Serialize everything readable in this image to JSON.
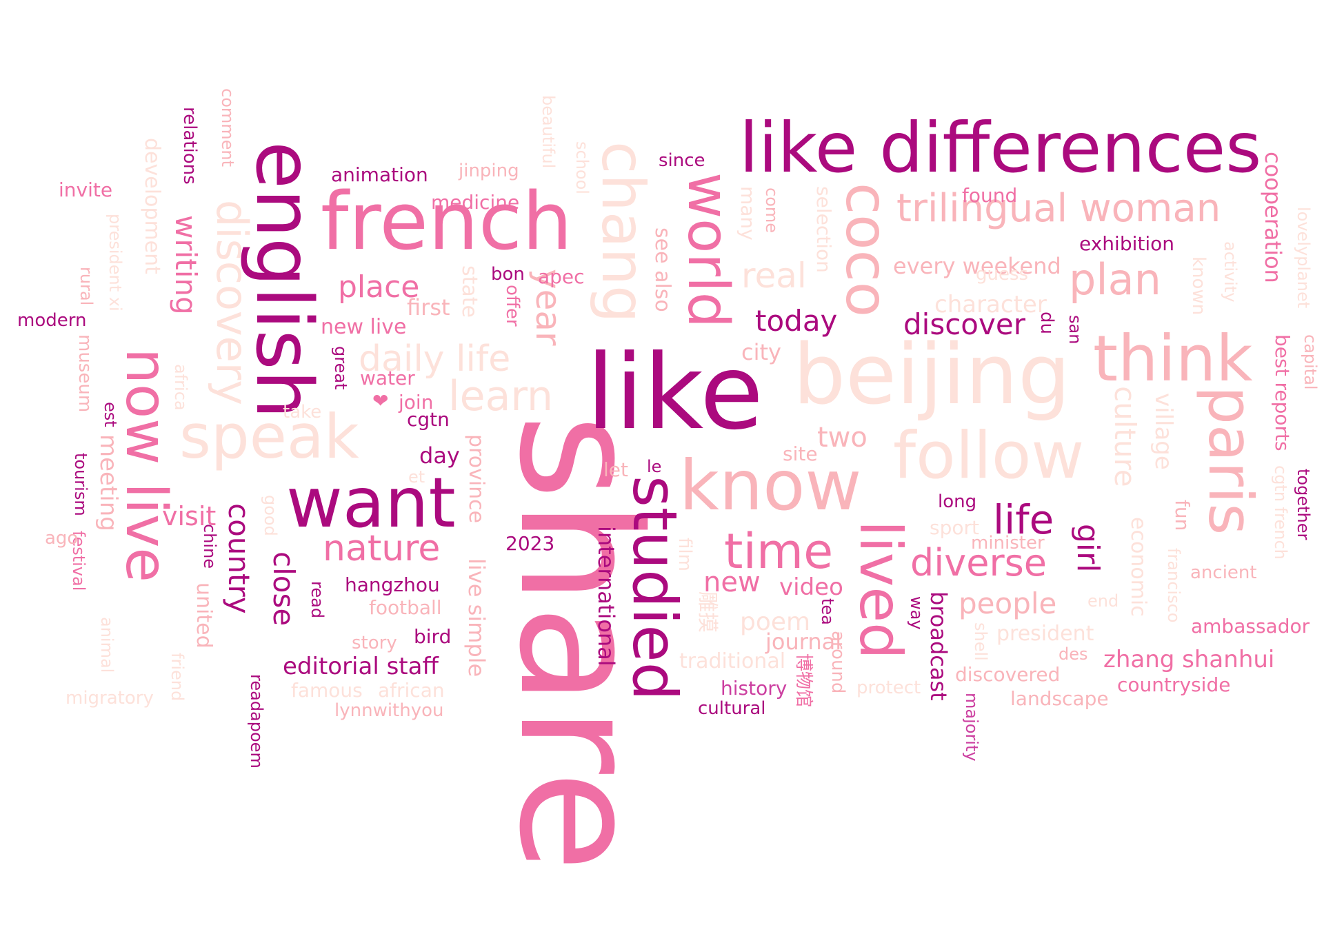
{
  "colors": {
    "deep": "#ab0a7e",
    "magenta": "#cc3fa0",
    "pink": "#f06fa5",
    "light_pink": "#f9b4ba",
    "pale": "#fde1da"
  },
  "words": [
    {
      "text": "share",
      "color": "pink"
    },
    {
      "text": "like",
      "color": "deep"
    },
    {
      "text": "beijing",
      "color": "pale"
    },
    {
      "text": "know",
      "color": "light_pink"
    },
    {
      "text": "like differences",
      "color": "deep"
    },
    {
      "text": "french",
      "color": "pink"
    },
    {
      "text": "english",
      "color": "deep"
    },
    {
      "text": "want",
      "color": "deep"
    },
    {
      "text": "studied",
      "color": "deep"
    },
    {
      "text": "now live",
      "color": "pink"
    },
    {
      "text": "follow",
      "color": "pale"
    },
    {
      "text": "think",
      "color": "light_pink"
    },
    {
      "text": "chang",
      "color": "pale"
    },
    {
      "text": "speak",
      "color": "pale"
    },
    {
      "text": "world",
      "color": "pink"
    },
    {
      "text": "coco",
      "color": "light_pink"
    },
    {
      "text": "paris",
      "color": "light_pink"
    },
    {
      "text": "lived",
      "color": "pink"
    },
    {
      "text": "trilingual woman",
      "color": "light_pink"
    },
    {
      "text": "time",
      "color": "pink"
    },
    {
      "text": "discovery",
      "color": "pale"
    },
    {
      "text": "learn",
      "color": "pale"
    },
    {
      "text": "plan",
      "color": "light_pink"
    },
    {
      "text": "diverse",
      "color": "pink"
    },
    {
      "text": "nature",
      "color": "pink"
    },
    {
      "text": "daily life",
      "color": "pale"
    },
    {
      "text": "year",
      "color": "light_pink"
    },
    {
      "text": "life",
      "color": "deep"
    },
    {
      "text": "writing",
      "color": "pink"
    },
    {
      "text": "culture",
      "color": "pale"
    },
    {
      "text": "real",
      "color": "pale"
    },
    {
      "text": "place",
      "color": "pink"
    },
    {
      "text": "today",
      "color": "deep"
    },
    {
      "text": "discover",
      "color": "deep"
    },
    {
      "text": "country",
      "color": "deep"
    },
    {
      "text": "close",
      "color": "deep"
    },
    {
      "text": "girl",
      "color": "deep"
    },
    {
      "text": "people",
      "color": "light_pink"
    },
    {
      "text": "meeting",
      "color": "light_pink"
    },
    {
      "text": "live simple",
      "color": "light_pink"
    },
    {
      "text": "broadcast",
      "color": "deep"
    },
    {
      "text": "new",
      "color": "pink"
    },
    {
      "text": "village",
      "color": "pale"
    },
    {
      "text": "international",
      "color": "deep"
    },
    {
      "text": "every weekend",
      "color": "light_pink"
    },
    {
      "text": "character",
      "color": "pale"
    },
    {
      "text": "two",
      "color": "light_pink"
    },
    {
      "text": "video",
      "color": "pink"
    },
    {
      "text": "cooperation",
      "color": "pink"
    },
    {
      "text": "zhang shanhui",
      "color": "pink"
    },
    {
      "text": "visit",
      "color": "pink"
    },
    {
      "text": "editorial staff",
      "color": "deep"
    },
    {
      "text": "poem",
      "color": "pale"
    },
    {
      "text": "journal",
      "color": "light_pink"
    },
    {
      "text": "province",
      "color": "light_pink"
    },
    {
      "text": "development",
      "color": "pale"
    },
    {
      "text": "hangzhou",
      "color": "deep"
    },
    {
      "text": "animation",
      "color": "deep"
    },
    {
      "text": "medicine",
      "color": "pink"
    },
    {
      "text": "state",
      "color": "pale"
    },
    {
      "text": "see also",
      "color": "light_pink"
    },
    {
      "text": "city",
      "color": "light_pink"
    },
    {
      "text": "economic",
      "color": "pale"
    },
    {
      "text": "president",
      "color": "pale"
    },
    {
      "text": "traditional",
      "color": "pale"
    },
    {
      "text": "united",
      "color": "light_pink"
    },
    {
      "text": "day",
      "color": "deep"
    },
    {
      "text": "discovered",
      "color": "light_pink"
    },
    {
      "text": "found",
      "color": "pink"
    },
    {
      "text": "apec",
      "color": "pink"
    },
    {
      "text": "first",
      "color": "light_pink"
    },
    {
      "text": "new live",
      "color": "pink"
    },
    {
      "text": "exhibition",
      "color": "deep"
    },
    {
      "text": "best reports",
      "color": "pink"
    },
    {
      "text": "fun",
      "color": "light_pink"
    },
    {
      "text": "relations",
      "color": "deep"
    },
    {
      "text": "comment",
      "color": "light_pink"
    },
    {
      "text": "many",
      "color": "pale"
    },
    {
      "text": "selection",
      "color": "pale"
    },
    {
      "text": "jinping",
      "color": "light_pink"
    },
    {
      "text": "museum",
      "color": "light_pink"
    },
    {
      "text": "site",
      "color": "light_pink"
    },
    {
      "text": "president xi",
      "color": "pale"
    },
    {
      "text": "cgtn french",
      "color": "pale"
    },
    {
      "text": "history",
      "color": "magenta"
    },
    {
      "text": "博物馆",
      "color": "pink"
    },
    {
      "text": "雕摸",
      "color": "pale"
    },
    {
      "text": "ambassador",
      "color": "pink"
    },
    {
      "text": "countryside",
      "color": "pink"
    },
    {
      "text": "landscape",
      "color": "light_pink"
    },
    {
      "text": "football",
      "color": "light_pink"
    },
    {
      "text": "cgtn",
      "color": "deep"
    },
    {
      "text": "water",
      "color": "pink"
    },
    {
      "text": "join",
      "color": "pink"
    },
    {
      "text": "❤",
      "color": "pink"
    },
    {
      "text": "bird",
      "color": "deep"
    },
    {
      "text": "story",
      "color": "light_pink"
    },
    {
      "text": "famous",
      "color": "pale"
    },
    {
      "text": "african",
      "color": "pale"
    },
    {
      "text": "lynnwithyou",
      "color": "light_pink"
    },
    {
      "text": "readapoem",
      "color": "deep"
    },
    {
      "text": "read",
      "color": "deep"
    },
    {
      "text": "great",
      "color": "deep"
    },
    {
      "text": "take",
      "color": "pale"
    },
    {
      "text": "2023",
      "color": "deep"
    },
    {
      "text": "let",
      "color": "light_pink"
    },
    {
      "text": "le",
      "color": "deep"
    },
    {
      "text": "et",
      "color": "pale"
    },
    {
      "text": "long",
      "color": "deep"
    },
    {
      "text": "sport",
      "color": "pale"
    },
    {
      "text": "minister",
      "color": "light_pink"
    },
    {
      "text": "since",
      "color": "deep"
    },
    {
      "text": "school",
      "color": "pale"
    },
    {
      "text": "beautiful",
      "color": "pale"
    },
    {
      "text": "bon",
      "color": "deep"
    },
    {
      "text": "offer",
      "color": "pink"
    },
    {
      "text": "du",
      "color": "deep"
    },
    {
      "text": "san",
      "color": "deep"
    },
    {
      "text": "guess",
      "color": "pale"
    },
    {
      "text": "known",
      "color": "pale"
    },
    {
      "text": "activity",
      "color": "pale"
    },
    {
      "text": "lovelyplanet",
      "color": "pale"
    },
    {
      "text": "capital",
      "color": "light_pink"
    },
    {
      "text": "together",
      "color": "deep"
    },
    {
      "text": "ancient",
      "color": "light_pink"
    },
    {
      "text": "francisco",
      "color": "pale"
    },
    {
      "text": "end",
      "color": "pale"
    },
    {
      "text": "des",
      "color": "light_pink"
    },
    {
      "text": "shell",
      "color": "pale"
    },
    {
      "text": "majority",
      "color": "magenta"
    },
    {
      "text": "way",
      "color": "deep"
    },
    {
      "text": "tea",
      "color": "deep"
    },
    {
      "text": "around",
      "color": "light_pink"
    },
    {
      "text": "protect",
      "color": "pale"
    },
    {
      "text": "cultural",
      "color": "deep"
    },
    {
      "text": "film",
      "color": "pale"
    },
    {
      "text": "come",
      "color": "light_pink"
    },
    {
      "text": "invite",
      "color": "pink"
    },
    {
      "text": "modern",
      "color": "deep"
    },
    {
      "text": "rural",
      "color": "light_pink"
    },
    {
      "text": "africa",
      "color": "pale"
    },
    {
      "text": "est",
      "color": "deep"
    },
    {
      "text": "tourism",
      "color": "deep"
    },
    {
      "text": "festival",
      "color": "pink"
    },
    {
      "text": "ago",
      "color": "light_pink"
    },
    {
      "text": "good",
      "color": "pale"
    },
    {
      "text": "chine",
      "color": "deep"
    },
    {
      "text": "animal",
      "color": "pale"
    },
    {
      "text": "friend",
      "color": "pale"
    },
    {
      "text": "migratory",
      "color": "pale"
    }
  ]
}
